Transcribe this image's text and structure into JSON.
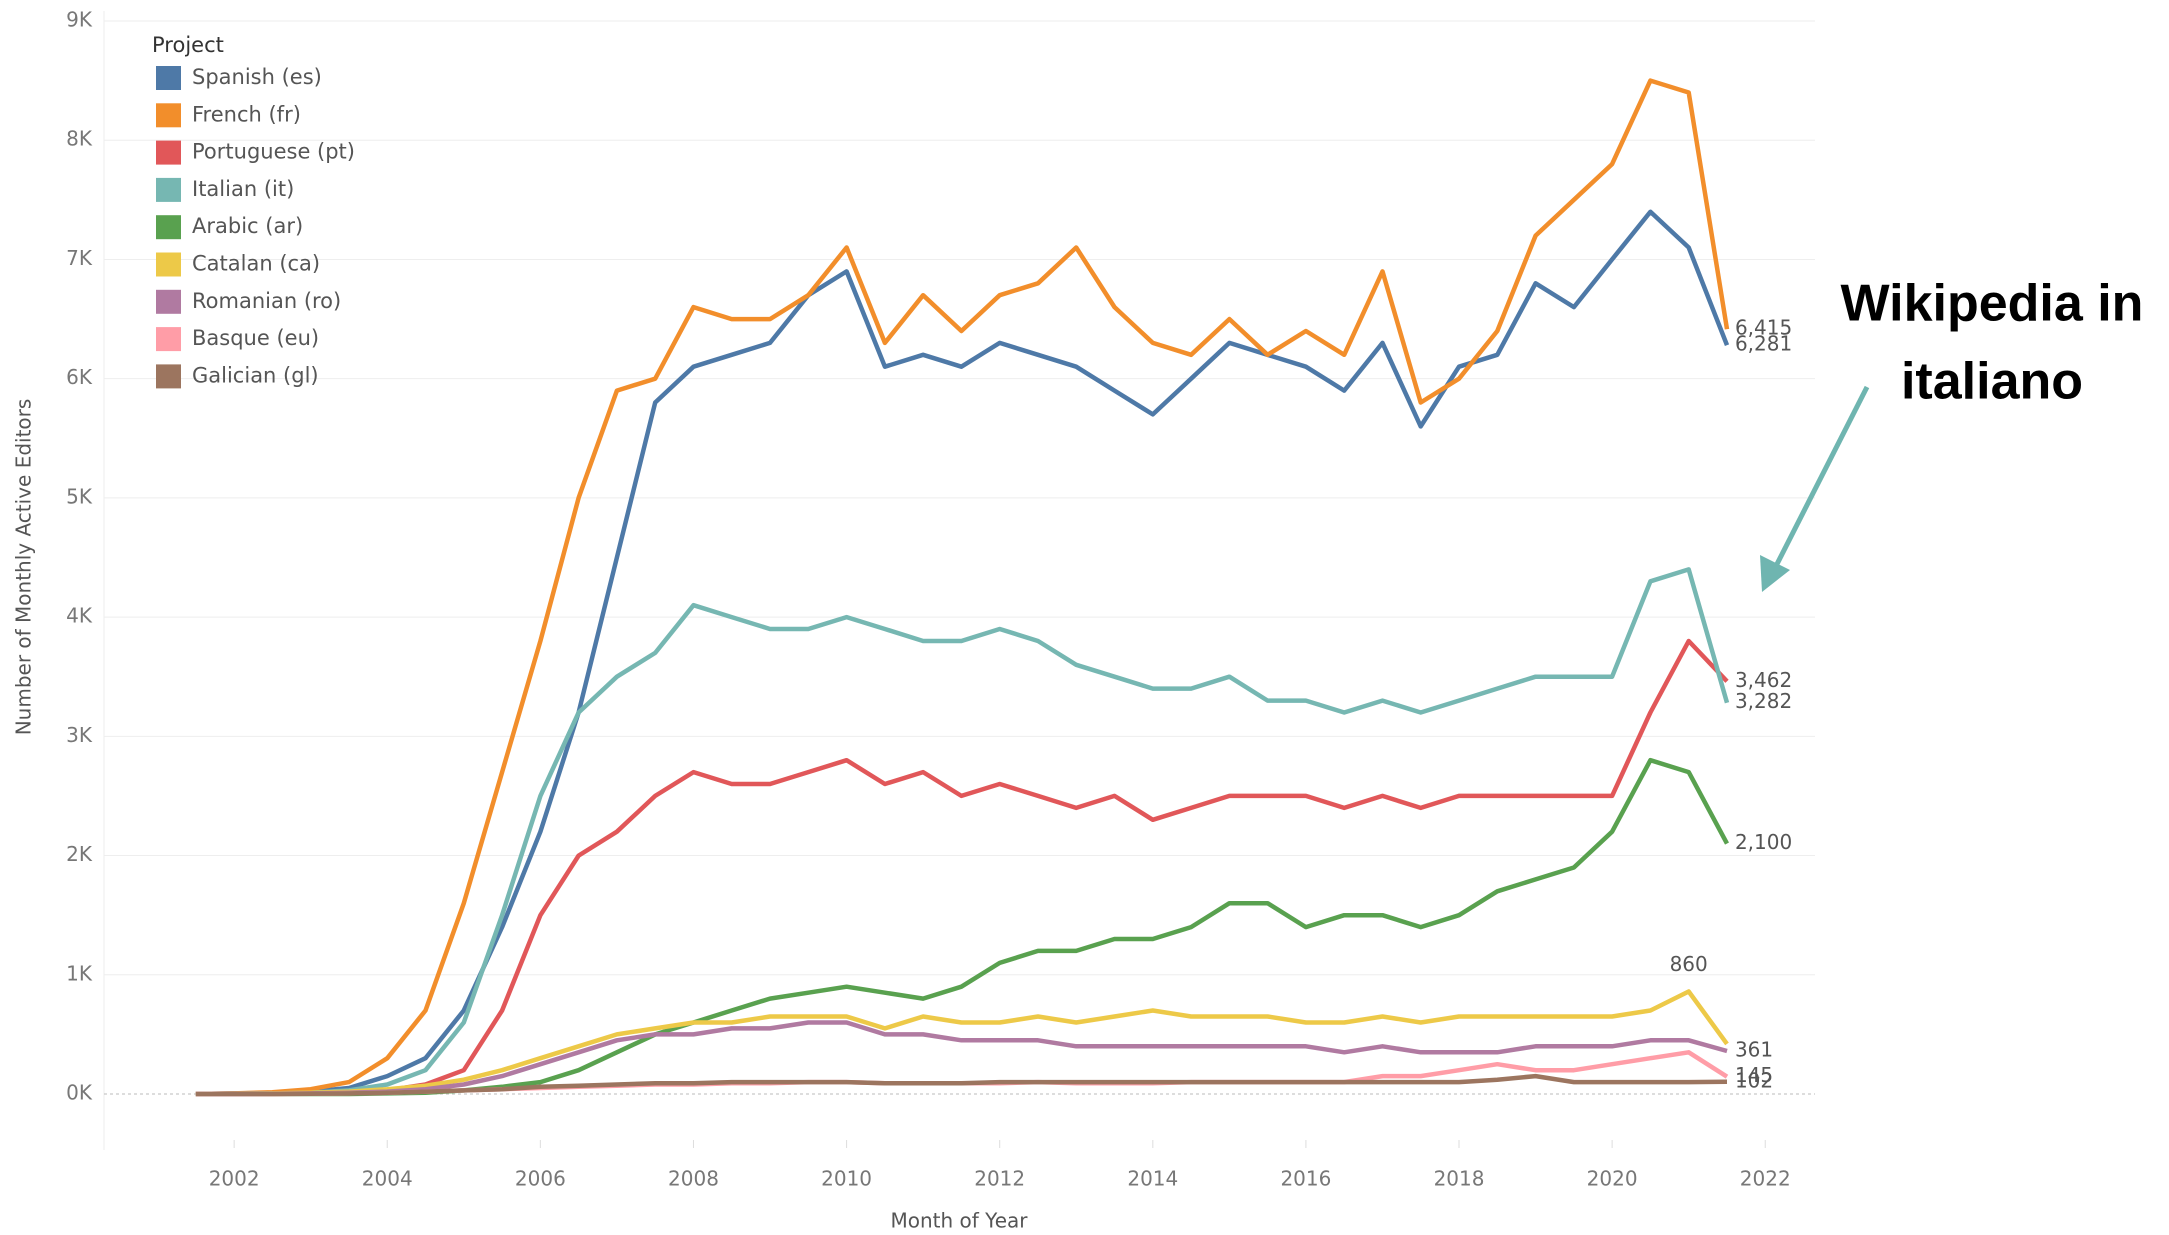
{
  "chart_data": {
    "type": "line",
    "x_label": "Month of Year",
    "y_label": "Number of Monthly Active Editors",
    "legend_title": "Project",
    "legend": "top-left",
    "grid": true,
    "annotation": {
      "lines": [
        "Wikipedia in",
        "italiano"
      ],
      "color": "#6fb5b0"
    },
    "xlim": [
      2000.3,
      2022.65
    ],
    "xticks": [
      2002,
      2004,
      2006,
      2008,
      2010,
      2012,
      2014,
      2016,
      2018,
      2020,
      2022
    ],
    "ylim": [
      0,
      9000
    ],
    "yticks": [
      {
        "value": 0,
        "label": "0K"
      },
      {
        "value": 1000,
        "label": "1K"
      },
      {
        "value": 2000,
        "label": "2K"
      },
      {
        "value": 3000,
        "label": "3K"
      },
      {
        "value": 4000,
        "label": "4K"
      },
      {
        "value": 5000,
        "label": "5K"
      },
      {
        "value": 6000,
        "label": "6K"
      },
      {
        "value": 7000,
        "label": "7K"
      },
      {
        "value": 8000,
        "label": "8K"
      },
      {
        "value": 9000,
        "label": "9K"
      }
    ],
    "x": [
      2001.5,
      2002,
      2002.5,
      2003,
      2003.5,
      2004,
      2004.5,
      2005,
      2005.5,
      2006,
      2006.5,
      2007,
      2007.5,
      2008,
      2008.5,
      2009,
      2009.5,
      2010,
      2010.5,
      2011,
      2011.5,
      2012,
      2012.5,
      2013,
      2013.5,
      2014,
      2014.5,
      2015,
      2015.5,
      2016,
      2016.5,
      2017,
      2017.5,
      2018,
      2018.5,
      2019,
      2019.5,
      2020,
      2020.5,
      2021,
      2021.5
    ],
    "series": [
      {
        "name": "Spanish (es)",
        "color": "#4e79a7",
        "values": [
          0,
          5,
          10,
          20,
          50,
          150,
          300,
          700,
          1400,
          2200,
          3200,
          4500,
          5800,
          6100,
          6200,
          6300,
          6700,
          6900,
          6100,
          6200,
          6100,
          6300,
          6200,
          6100,
          5900,
          5700,
          6000,
          6300,
          6200,
          6100,
          5900,
          6300,
          5600,
          6100,
          6200,
          6800,
          6600,
          7000,
          7400,
          7100,
          6281
        ],
        "value_labels": [
          null,
          null,
          null,
          null,
          null,
          null,
          null,
          null,
          null,
          null,
          null,
          null,
          null,
          null,
          null,
          null,
          null,
          null,
          null,
          null,
          null,
          null,
          null,
          null,
          null,
          null,
          null,
          null,
          null,
          null,
          null,
          null,
          null,
          null,
          null,
          null,
          null,
          null,
          null,
          null,
          "6,281"
        ]
      },
      {
        "name": "French (fr)",
        "color": "#f28e2b",
        "values": [
          0,
          5,
          15,
          40,
          100,
          300,
          700,
          1600,
          2700,
          3800,
          5000,
          5900,
          6000,
          6600,
          6500,
          6500,
          6700,
          7100,
          6300,
          6700,
          6400,
          6700,
          6800,
          7100,
          6600,
          6300,
          6200,
          6500,
          6200,
          6400,
          6200,
          6900,
          5800,
          6000,
          6400,
          7200,
          7500,
          7800,
          8500,
          8400,
          6415
        ],
        "value_labels": [
          null,
          null,
          null,
          null,
          null,
          null,
          null,
          null,
          null,
          null,
          null,
          null,
          null,
          null,
          null,
          null,
          null,
          null,
          null,
          null,
          null,
          null,
          null,
          null,
          null,
          null,
          null,
          null,
          null,
          null,
          null,
          null,
          null,
          null,
          null,
          null,
          null,
          null,
          null,
          null,
          "6,415"
        ]
      },
      {
        "name": "Portuguese (pt)",
        "color": "#e15759",
        "values": [
          0,
          0,
          0,
          5,
          10,
          30,
          80,
          200,
          700,
          1500,
          2000,
          2200,
          2500,
          2700,
          2600,
          2600,
          2700,
          2800,
          2600,
          2700,
          2500,
          2600,
          2500,
          2400,
          2500,
          2300,
          2400,
          2500,
          2500,
          2500,
          2400,
          2500,
          2400,
          2500,
          2500,
          2500,
          2500,
          2500,
          3200,
          3800,
          3462
        ],
        "value_labels": [
          null,
          null,
          null,
          null,
          null,
          null,
          null,
          null,
          null,
          null,
          null,
          null,
          null,
          null,
          null,
          null,
          null,
          null,
          null,
          null,
          null,
          null,
          null,
          null,
          null,
          null,
          null,
          null,
          null,
          null,
          null,
          null,
          null,
          null,
          null,
          null,
          null,
          null,
          null,
          null,
          "3,462"
        ]
      },
      {
        "name": "Italian (it)",
        "color": "#76b7b2",
        "values": [
          0,
          3,
          5,
          10,
          30,
          80,
          200,
          600,
          1500,
          2500,
          3200,
          3500,
          3700,
          4100,
          4000,
          3900,
          3900,
          4000,
          3900,
          3800,
          3800,
          3900,
          3800,
          3600,
          3500,
          3400,
          3400,
          3500,
          3300,
          3300,
          3200,
          3300,
          3200,
          3300,
          3400,
          3500,
          3500,
          3500,
          4300,
          4400,
          3282
        ],
        "value_labels": [
          null,
          null,
          null,
          null,
          null,
          null,
          null,
          null,
          null,
          null,
          null,
          null,
          null,
          null,
          null,
          null,
          null,
          null,
          null,
          null,
          null,
          null,
          null,
          null,
          null,
          null,
          null,
          null,
          null,
          null,
          null,
          null,
          null,
          null,
          null,
          null,
          null,
          null,
          null,
          null,
          "3,282"
        ]
      },
      {
        "name": "Arabic (ar)",
        "color": "#59a14f",
        "values": [
          0,
          0,
          0,
          0,
          0,
          5,
          10,
          30,
          60,
          100,
          200,
          350,
          500,
          600,
          700,
          800,
          850,
          900,
          850,
          800,
          900,
          1100,
          1200,
          1200,
          1300,
          1300,
          1400,
          1600,
          1600,
          1400,
          1500,
          1500,
          1400,
          1500,
          1700,
          1800,
          1900,
          2200,
          2800,
          2700,
          2100
        ],
        "value_labels": [
          null,
          null,
          null,
          null,
          null,
          null,
          null,
          null,
          null,
          null,
          null,
          null,
          null,
          null,
          null,
          null,
          null,
          null,
          null,
          null,
          null,
          null,
          null,
          null,
          null,
          null,
          null,
          null,
          null,
          null,
          null,
          null,
          null,
          null,
          null,
          null,
          null,
          null,
          null,
          null,
          "2,100"
        ]
      },
      {
        "name": "Catalan (ca)",
        "color": "#edc948",
        "values": [
          0,
          2,
          5,
          10,
          20,
          40,
          70,
          120,
          200,
          300,
          400,
          500,
          550,
          600,
          600,
          650,
          650,
          650,
          550,
          650,
          600,
          600,
          650,
          600,
          650,
          700,
          650,
          650,
          650,
          600,
          600,
          650,
          600,
          650,
          650,
          650,
          650,
          650,
          700,
          860,
          420
        ],
        "value_labels": [
          null,
          null,
          null,
          null,
          null,
          null,
          null,
          null,
          null,
          null,
          null,
          null,
          null,
          null,
          null,
          null,
          null,
          null,
          null,
          null,
          null,
          null,
          null,
          null,
          null,
          null,
          null,
          null,
          null,
          null,
          null,
          null,
          null,
          null,
          null,
          null,
          null,
          null,
          null,
          "860",
          null
        ]
      },
      {
        "name": "Romanian (ro)",
        "color": "#b07aa1",
        "values": [
          0,
          0,
          2,
          5,
          10,
          20,
          40,
          80,
          150,
          250,
          350,
          450,
          500,
          500,
          550,
          550,
          600,
          600,
          500,
          500,
          450,
          450,
          450,
          400,
          400,
          400,
          400,
          400,
          400,
          400,
          350,
          400,
          350,
          350,
          350,
          400,
          400,
          400,
          450,
          450,
          361
        ],
        "value_labels": [
          null,
          null,
          null,
          null,
          null,
          null,
          null,
          null,
          null,
          null,
          null,
          null,
          null,
          null,
          null,
          null,
          null,
          null,
          null,
          null,
          null,
          null,
          null,
          null,
          null,
          null,
          null,
          null,
          null,
          null,
          null,
          null,
          null,
          null,
          null,
          null,
          null,
          null,
          null,
          null,
          "361"
        ]
      },
      {
        "name": "Basque (eu)",
        "color": "#ff9da7",
        "values": [
          0,
          0,
          0,
          2,
          5,
          10,
          20,
          30,
          40,
          50,
          60,
          70,
          80,
          80,
          90,
          90,
          100,
          100,
          90,
          90,
          90,
          90,
          100,
          90,
          90,
          90,
          100,
          100,
          100,
          100,
          100,
          150,
          150,
          200,
          250,
          200,
          200,
          250,
          300,
          350,
          145
        ],
        "value_labels": [
          null,
          null,
          null,
          null,
          null,
          null,
          null,
          null,
          null,
          null,
          null,
          null,
          null,
          null,
          null,
          null,
          null,
          null,
          null,
          null,
          null,
          null,
          null,
          null,
          null,
          null,
          null,
          null,
          null,
          null,
          null,
          null,
          null,
          null,
          null,
          null,
          null,
          null,
          null,
          null,
          "145"
        ]
      },
      {
        "name": "Galician (gl)",
        "color": "#9c755f",
        "values": [
          0,
          0,
          0,
          2,
          5,
          10,
          20,
          30,
          40,
          60,
          70,
          80,
          90,
          90,
          100,
          100,
          100,
          100,
          90,
          90,
          90,
          100,
          100,
          100,
          100,
          100,
          100,
          100,
          100,
          100,
          100,
          100,
          100,
          100,
          120,
          150,
          100,
          100,
          100,
          100,
          102
        ],
        "value_labels": [
          null,
          null,
          null,
          null,
          null,
          null,
          null,
          null,
          null,
          null,
          null,
          null,
          null,
          null,
          null,
          null,
          null,
          null,
          null,
          null,
          null,
          null,
          null,
          null,
          null,
          null,
          null,
          null,
          null,
          null,
          null,
          null,
          null,
          null,
          null,
          null,
          null,
          null,
          null,
          null,
          "102"
        ]
      }
    ]
  }
}
